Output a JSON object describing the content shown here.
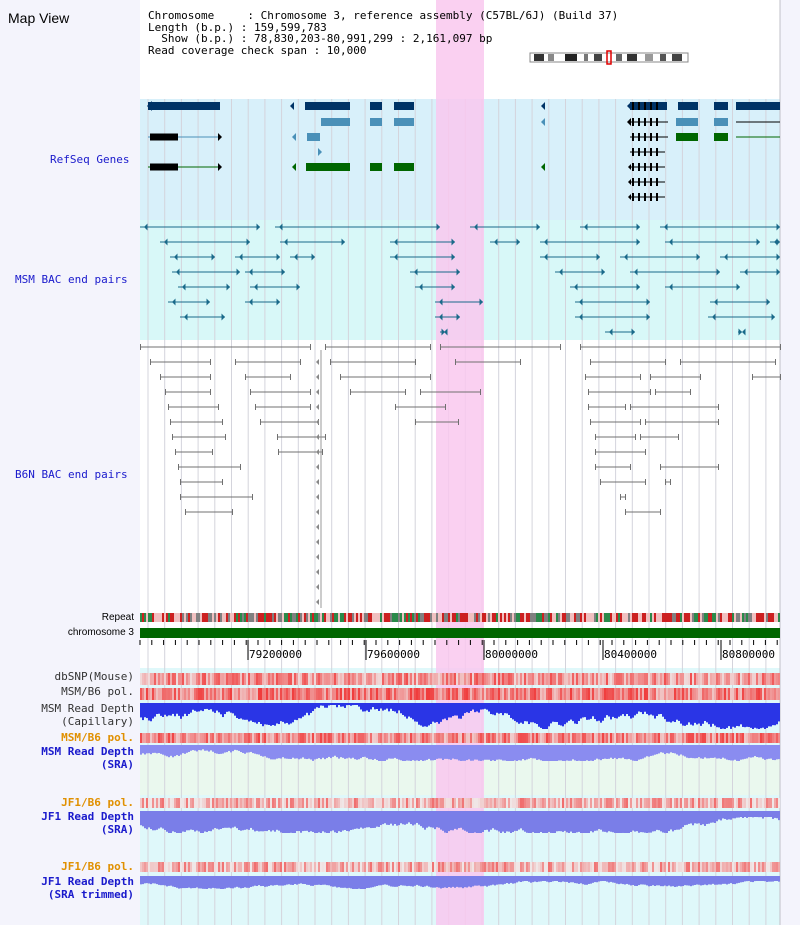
{
  "title": "Map View",
  "header": {
    "line1": "Chromosome     : Chromosome 3, reference assembly (C57BL/6J) (Build 37)",
    "line2": "Length (b.p.) : 159,599,783",
    "line3": "  Show (b.p.) : 78,830,203-80,991,299 : 2,161,097 bp",
    "line4": "Read coverage check span : 10,000"
  },
  "tracks": {
    "refseq": "RefSeq Genes",
    "msm_bac": "MSM BAC end pairs",
    "b6n_bac": "B6N BAC end pairs",
    "repeat": "Repeat",
    "chromosome": "chromosome 3",
    "dbsnp": "dbSNP(Mouse)",
    "msm_b6_pol_1": "MSM/B6 pol.",
    "msm_depth_cap_1": "MSM Read Depth",
    "msm_depth_cap_2": "(Capillary)",
    "msm_b6_pol_2": "MSM/B6 pol.",
    "msm_depth_sra_1": "MSM Read Depth",
    "msm_depth_sra_2": "(SRA)",
    "jf1_b6_pol_1": "JF1/B6 pol.",
    "jf1_depth_sra_1": "JF1 Read Depth",
    "jf1_depth_sra_2": "(SRA)",
    "jf1_b6_pol_2": "JF1/B6 pol.",
    "jf1_depth_trim_1": "JF1 Read Depth",
    "jf1_depth_trim_2": "(SRA trimmed)"
  },
  "axis": {
    "ticks": [
      "79200000",
      "79600000",
      "80000000",
      "80400000",
      "80800000"
    ]
  },
  "colors": {
    "highlight": "#f9c8ee",
    "refseq_bg": "#d8f0fa",
    "msm_bg": "#d8f8f8",
    "dark_gene": "#003366",
    "mid_gene": "#4a90b8",
    "green_gene": "#006600",
    "bac_blue": "#1a6a8a",
    "bac_gray": "#707070"
  }
}
